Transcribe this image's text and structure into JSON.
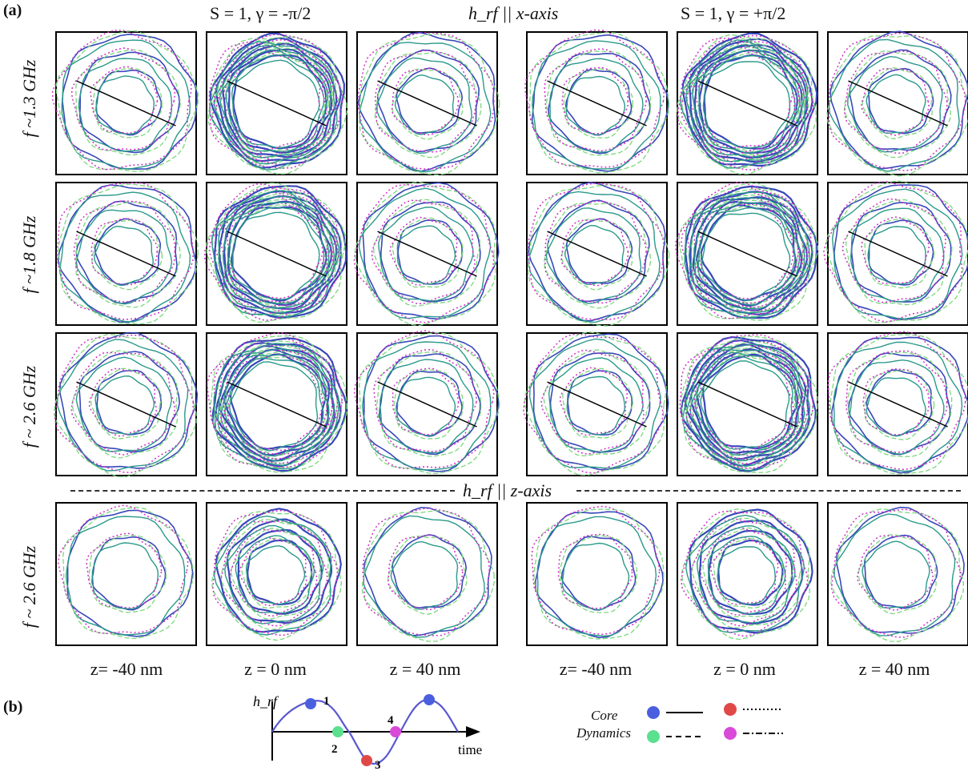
{
  "panel_a_label": "(a)",
  "panel_b_label": "(b)",
  "header": {
    "left_title": "S = 1, γ = -π/2",
    "center_title": "h_rf || x-axis",
    "right_title": "S = 1, γ = +π/2",
    "z_axis_title": "h_rf || z-axis"
  },
  "row_labels": [
    "f ~1.3 GHz",
    "f ~1.8 GHz",
    "f ~ 2.6 GHz",
    "f ~ 2.6 GHz"
  ],
  "column_labels": [
    "z= -40 nm",
    "z = 0 nm",
    "z = 40 nm",
    "z= -40 nm",
    "z = 0 nm",
    "z = 40 nm"
  ],
  "panel_b": {
    "y_label": "h_rf",
    "x_label": "time",
    "points": [
      "1",
      "2",
      "3",
      "4"
    ]
  },
  "legend": {
    "title_line1": "Core",
    "title_line2": "Dynamics",
    "colors": {
      "blue": "#4a5fe0",
      "green": "#5be08f",
      "red": "#e04848",
      "magenta": "#d94ad9"
    }
  },
  "colors": {
    "contour_blue": "#3848b8",
    "contour_teal": "#2a9a8a",
    "contour_green": "#7ad87a",
    "contour_magenta": "#d030c8"
  }
}
